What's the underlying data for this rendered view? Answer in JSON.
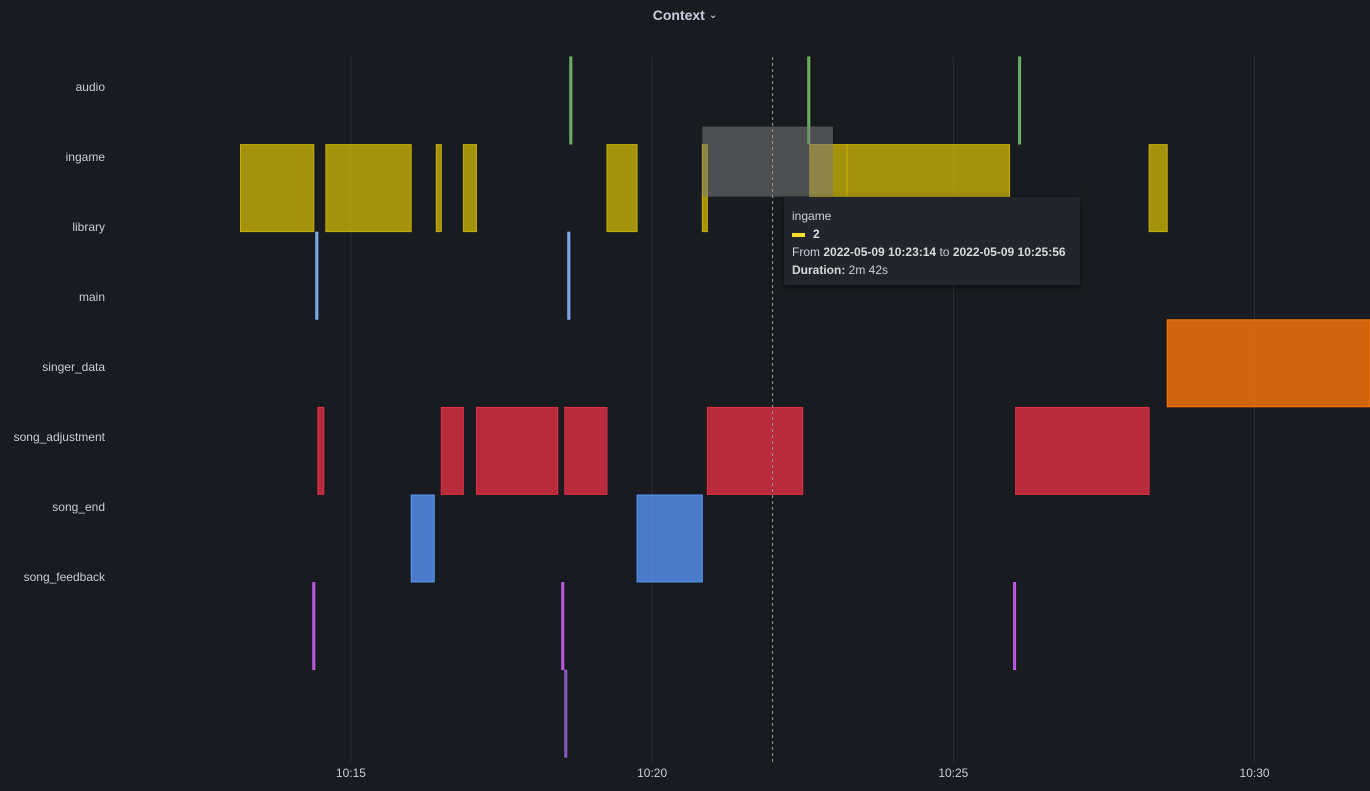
{
  "panel": {
    "title": "Context",
    "chevron_icon": "chevron-down-icon"
  },
  "colors": {
    "background": "#181b1f",
    "grid": "#2c2f35",
    "text": "#ccccdc"
  },
  "chart_data": {
    "type": "state-timeline",
    "x_axis": {
      "type": "time",
      "range": [
        "10:11:05",
        "10:31:55"
      ],
      "ticks": [
        "10:15",
        "10:20",
        "10:25",
        "10:30"
      ]
    },
    "rows": [
      {
        "label": "audio",
        "color": "#73bf69",
        "intervals": [
          [
            "10:18:38",
            "10:18:38"
          ],
          [
            "10:22:35",
            "10:22:35"
          ],
          [
            "10:26:05",
            "10:26:05"
          ]
        ]
      },
      {
        "label": "ingame",
        "color": "#c9b007",
        "intervals": [
          [
            "10:13:10",
            "10:14:23"
          ],
          [
            "10:14:35",
            "10:16:00"
          ],
          [
            "10:16:25",
            "10:16:30"
          ],
          [
            "10:16:52",
            "10:17:05"
          ],
          [
            "10:19:15",
            "10:19:45"
          ],
          [
            "10:20:50",
            "10:20:55"
          ],
          [
            "10:22:37",
            "10:23:14"
          ],
          [
            "10:23:14",
            "10:25:56"
          ],
          [
            "10:28:15",
            "10:28:33"
          ]
        ]
      },
      {
        "label": "library",
        "color": "#8ab8ff",
        "intervals": [
          [
            "10:14:25",
            "10:14:25"
          ],
          [
            "10:18:36",
            "10:18:36"
          ]
        ]
      },
      {
        "label": "main",
        "color": "#ff780a",
        "intervals": [
          [
            "10:28:33",
            "10:31:55"
          ]
        ]
      },
      {
        "label": "singer_data",
        "color": "#e02f44",
        "intervals": [
          [
            "10:14:27",
            "10:14:33"
          ],
          [
            "10:16:30",
            "10:16:52"
          ],
          [
            "10:17:05",
            "10:18:26"
          ],
          [
            "10:18:33",
            "10:19:15"
          ],
          [
            "10:20:55",
            "10:22:30"
          ],
          [
            "10:26:02",
            "10:28:15"
          ]
        ]
      },
      {
        "label": "song_adjustment",
        "color": "#5794f2",
        "intervals": [
          [
            "10:16:00",
            "10:16:23"
          ],
          [
            "10:19:45",
            "10:20:50"
          ]
        ]
      },
      {
        "label": "song_end",
        "color": "#ca5ef0",
        "intervals": [
          [
            "10:14:22",
            "10:14:22"
          ],
          [
            "10:18:30",
            "10:18:30"
          ],
          [
            "10:26:00",
            "10:26:00"
          ]
        ]
      },
      {
        "label": "song_feedback",
        "color": "#8f5ecf",
        "intervals": [
          [
            "10:18:33",
            "10:18:33"
          ]
        ]
      }
    ],
    "highlight": {
      "label": "ingame",
      "value": "2",
      "from": "10:20:50",
      "to": "10:23:00"
    },
    "cursor": "10:22:00"
  },
  "tooltip": {
    "series": "ingame",
    "value": "2",
    "color": "#fade2a",
    "from_label": "From",
    "from": "2022-05-09 10:23:14",
    "to_label": "to",
    "to": "2022-05-09 10:25:56",
    "duration_label": "Duration:",
    "duration": "2m 42s"
  }
}
